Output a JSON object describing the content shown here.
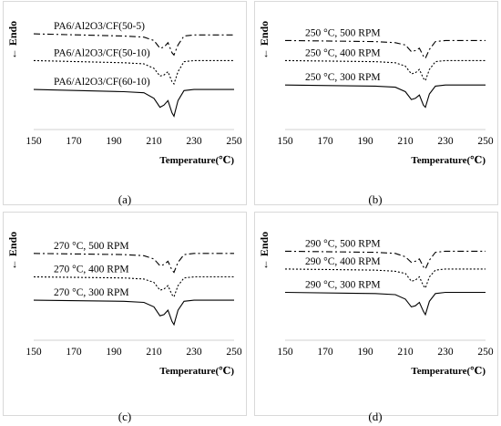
{
  "figure": {
    "panels": [
      {
        "sub_label": "(a)",
        "y_axis_label": "← Endo",
        "x_axis_title": "Temperature(℃)",
        "x_ticks": [
          "150",
          "170",
          "190",
          "210",
          "230",
          "250"
        ],
        "curves": [
          {
            "label": "PA6/Al2O3/CF(50-5)",
            "style": "dash-dot",
            "baseline": 0.86
          },
          {
            "label": "PA6/Al2O3/CF(50-10)",
            "style": "dotted",
            "baseline": 0.62
          },
          {
            "label": "PA6/Al2O3/CF(60-10)",
            "style": "solid",
            "baseline": 0.36
          }
        ]
      },
      {
        "sub_label": "(b)",
        "y_axis_label": "← Endo",
        "x_axis_title": "Temperature(℃)",
        "x_ticks": [
          "150",
          "170",
          "190",
          "210",
          "230",
          "250"
        ],
        "curves": [
          {
            "label": "250 °C, 500 RPM",
            "style": "dash-dot",
            "baseline": 0.8
          },
          {
            "label": "250 °C, 400 RPM",
            "style": "dotted",
            "baseline": 0.62
          },
          {
            "label": "250 °C, 300 RPM",
            "style": "solid",
            "baseline": 0.4
          }
        ]
      },
      {
        "sub_label": "(c)",
        "y_axis_label": "← Endo",
        "x_axis_title": "Temperature(℃)",
        "x_ticks": [
          "150",
          "170",
          "190",
          "210",
          "230",
          "250"
        ],
        "curves": [
          {
            "label": "270 °C, 500 RPM",
            "style": "dash-dot",
            "baseline": 0.78
          },
          {
            "label": "270 °C, 400 RPM",
            "style": "dotted",
            "baseline": 0.57
          },
          {
            "label": "270 °C, 300 RPM",
            "style": "solid",
            "baseline": 0.36
          }
        ]
      },
      {
        "sub_label": "(d)",
        "y_axis_label": "← Endo",
        "x_axis_title": "Temperature(℃)",
        "x_ticks": [
          "150",
          "170",
          "190",
          "210",
          "230",
          "250"
        ],
        "curves": [
          {
            "label": "290 °C, 500 RPM",
            "style": "dash-dot",
            "baseline": 0.8
          },
          {
            "label": "290 °C, 400 RPM",
            "style": "dotted",
            "baseline": 0.64
          },
          {
            "label": "290 °C, 300 RPM",
            "style": "solid",
            "baseline": 0.43
          }
        ]
      }
    ]
  },
  "chart_data": [
    {
      "type": "line",
      "xlabel": "Temperature(℃)",
      "ylabel": "← Endo",
      "xlim": [
        150,
        250
      ],
      "ylim": [
        0,
        1
      ],
      "x_ticks": [
        150,
        170,
        190,
        210,
        230,
        250
      ],
      "x": [
        150,
        195,
        205,
        210,
        213,
        215,
        217,
        219,
        220,
        222,
        225,
        230,
        250
      ],
      "series": [
        {
          "name": "PA6/Al2O3/CF(50-5)",
          "values": [
            0.86,
            0.84,
            0.83,
            0.8,
            0.73,
            0.74,
            0.78,
            0.69,
            0.67,
            0.76,
            0.84,
            0.85,
            0.85
          ]
        },
        {
          "name": "PA6/Al2O3/CF(50-10)",
          "values": [
            0.62,
            0.6,
            0.59,
            0.55,
            0.48,
            0.49,
            0.52,
            0.43,
            0.41,
            0.52,
            0.61,
            0.62,
            0.62
          ]
        },
        {
          "name": "PA6/Al2O3/CF(60-10)",
          "values": [
            0.36,
            0.34,
            0.33,
            0.28,
            0.2,
            0.22,
            0.26,
            0.15,
            0.12,
            0.26,
            0.35,
            0.36,
            0.36
          ]
        }
      ]
    },
    {
      "type": "line",
      "xlabel": "Temperature(℃)",
      "ylabel": "← Endo",
      "xlim": [
        150,
        250
      ],
      "ylim": [
        0,
        1
      ],
      "x_ticks": [
        150,
        170,
        190,
        210,
        230,
        250
      ],
      "x": [
        150,
        195,
        205,
        210,
        213,
        215,
        217,
        219,
        220,
        222,
        225,
        230,
        250
      ],
      "series": [
        {
          "name": "250 °C, 500 RPM",
          "values": [
            0.8,
            0.79,
            0.78,
            0.76,
            0.7,
            0.71,
            0.73,
            0.66,
            0.64,
            0.72,
            0.79,
            0.8,
            0.8
          ]
        },
        {
          "name": "250 °C, 400 RPM",
          "values": [
            0.62,
            0.61,
            0.6,
            0.57,
            0.5,
            0.51,
            0.54,
            0.46,
            0.44,
            0.54,
            0.61,
            0.62,
            0.62
          ]
        },
        {
          "name": "250 °C, 300 RPM",
          "values": [
            0.4,
            0.39,
            0.38,
            0.34,
            0.27,
            0.28,
            0.31,
            0.22,
            0.2,
            0.32,
            0.39,
            0.4,
            0.4
          ]
        }
      ]
    },
    {
      "type": "line",
      "xlabel": "Temperature(℃)",
      "ylabel": "← Endo",
      "xlim": [
        150,
        250
      ],
      "ylim": [
        0,
        1
      ],
      "x_ticks": [
        150,
        170,
        190,
        210,
        230,
        250
      ],
      "x": [
        150,
        195,
        205,
        210,
        213,
        215,
        217,
        219,
        220,
        222,
        225,
        230,
        250
      ],
      "series": [
        {
          "name": "270 °C, 500 RPM",
          "values": [
            0.78,
            0.77,
            0.76,
            0.73,
            0.67,
            0.68,
            0.71,
            0.63,
            0.61,
            0.7,
            0.77,
            0.78,
            0.78
          ]
        },
        {
          "name": "270 °C, 400 RPM",
          "values": [
            0.57,
            0.56,
            0.55,
            0.52,
            0.45,
            0.46,
            0.49,
            0.41,
            0.39,
            0.49,
            0.56,
            0.57,
            0.57
          ]
        },
        {
          "name": "270 °C, 300 RPM",
          "values": [
            0.36,
            0.35,
            0.34,
            0.3,
            0.22,
            0.23,
            0.27,
            0.17,
            0.14,
            0.27,
            0.35,
            0.36,
            0.36
          ]
        }
      ]
    },
    {
      "type": "line",
      "xlabel": "Temperature(℃)",
      "ylabel": "← Endo",
      "xlim": [
        150,
        250
      ],
      "ylim": [
        0,
        1
      ],
      "x_ticks": [
        150,
        170,
        190,
        210,
        230,
        250
      ],
      "x": [
        150,
        195,
        205,
        210,
        213,
        215,
        217,
        219,
        220,
        222,
        225,
        230,
        250
      ],
      "series": [
        {
          "name": "290 °C, 500 RPM",
          "values": [
            0.8,
            0.79,
            0.78,
            0.75,
            0.7,
            0.71,
            0.73,
            0.66,
            0.64,
            0.72,
            0.79,
            0.8,
            0.8
          ]
        },
        {
          "name": "290 °C, 400 RPM",
          "values": [
            0.64,
            0.63,
            0.62,
            0.6,
            0.53,
            0.54,
            0.57,
            0.49,
            0.47,
            0.57,
            0.63,
            0.64,
            0.64
          ]
        },
        {
          "name": "290 °C, 300 RPM",
          "values": [
            0.43,
            0.42,
            0.41,
            0.37,
            0.3,
            0.31,
            0.34,
            0.26,
            0.23,
            0.35,
            0.42,
            0.43,
            0.43
          ]
        }
      ]
    }
  ]
}
